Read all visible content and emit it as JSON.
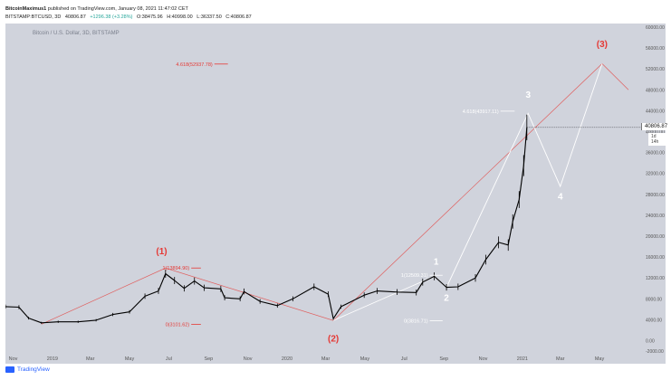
{
  "header": {
    "author": "BitcoinMaximus1",
    "published_text": "published on TradingView.com, January 08, 2021 11:47:02 CET",
    "symbol": "BITSTAMP:BTCUSD, 3D",
    "last": "40806.87",
    "change": "+1296.38 (+3.28%)",
    "open": "O:38475.96",
    "high": "H:40998.00",
    "low": "L:36337.50",
    "close": "C:40806.87"
  },
  "chart_data": {
    "type": "line",
    "title": "Bitcoin / U.S. Dollar, 3D, BITSTAMP",
    "current_price": 40806.87,
    "current_price_label": "40806.87",
    "countdown_label": "1d 14h",
    "ylim": [
      -2000,
      60000
    ],
    "y_ticks": [
      -2000,
      0,
      4000,
      8000,
      12000,
      16000,
      20000,
      24000,
      28000,
      32000,
      36000,
      40000,
      44000,
      48000,
      52000,
      56000,
      60000
    ],
    "y_tick_labels": [
      "-2000.00",
      "0.00",
      "4000.00",
      "8000.00",
      "12000.00",
      "16000.00",
      "20000.00",
      "24000.00",
      "28000.00",
      "32000.00",
      "36000.00",
      "40000.00",
      "44000.00",
      "48000.00",
      "52000.00",
      "56000.00",
      "60000.00"
    ],
    "x_range": [
      "2018-10-20",
      "2021-06-15"
    ],
    "x_ticks": [
      {
        "date": "2018-11-01",
        "label": "Nov"
      },
      {
        "date": "2019-01-01",
        "label": "2019"
      },
      {
        "date": "2019-03-01",
        "label": "Mar"
      },
      {
        "date": "2019-05-01",
        "label": "May"
      },
      {
        "date": "2019-07-01",
        "label": "Jul"
      },
      {
        "date": "2019-09-01",
        "label": "Sep"
      },
      {
        "date": "2019-11-01",
        "label": "Nov"
      },
      {
        "date": "2020-01-01",
        "label": "2020"
      },
      {
        "date": "2020-03-01",
        "label": "Mar"
      },
      {
        "date": "2020-05-01",
        "label": "May"
      },
      {
        "date": "2020-07-01",
        "label": "Jul"
      },
      {
        "date": "2020-09-01",
        "label": "Sep"
      },
      {
        "date": "2020-11-01",
        "label": "Nov"
      },
      {
        "date": "2021-01-01",
        "label": "2021"
      },
      {
        "date": "2021-03-01",
        "label": "Mar"
      },
      {
        "date": "2021-05-01",
        "label": "May"
      }
    ],
    "price_series": [
      {
        "x": "2018-10-20",
        "y": 6500
      },
      {
        "x": "2018-11-10",
        "y": 6400
      },
      {
        "x": "2018-11-25",
        "y": 4300
      },
      {
        "x": "2018-12-15",
        "y": 3400
      },
      {
        "x": "2019-01-10",
        "y": 3600
      },
      {
        "x": "2019-02-10",
        "y": 3600
      },
      {
        "x": "2019-03-10",
        "y": 3900
      },
      {
        "x": "2019-04-05",
        "y": 5000
      },
      {
        "x": "2019-05-01",
        "y": 5500
      },
      {
        "x": "2019-05-25",
        "y": 8500
      },
      {
        "x": "2019-06-15",
        "y": 9500
      },
      {
        "x": "2019-06-26",
        "y": 12800
      },
      {
        "x": "2019-07-10",
        "y": 11500
      },
      {
        "x": "2019-07-25",
        "y": 10000
      },
      {
        "x": "2019-08-10",
        "y": 11400
      },
      {
        "x": "2019-08-25",
        "y": 10100
      },
      {
        "x": "2019-09-20",
        "y": 9900
      },
      {
        "x": "2019-09-26",
        "y": 8200
      },
      {
        "x": "2019-10-20",
        "y": 8000
      },
      {
        "x": "2019-10-26",
        "y": 9400
      },
      {
        "x": "2019-11-20",
        "y": 7500
      },
      {
        "x": "2019-12-17",
        "y": 6700
      },
      {
        "x": "2020-01-10",
        "y": 8000
      },
      {
        "x": "2020-02-12",
        "y": 10300
      },
      {
        "x": "2020-03-05",
        "y": 8900
      },
      {
        "x": "2020-03-13",
        "y": 4200
      },
      {
        "x": "2020-03-25",
        "y": 6500
      },
      {
        "x": "2020-04-30",
        "y": 8700
      },
      {
        "x": "2020-05-20",
        "y": 9500
      },
      {
        "x": "2020-06-20",
        "y": 9300
      },
      {
        "x": "2020-07-20",
        "y": 9200
      },
      {
        "x": "2020-07-30",
        "y": 11200
      },
      {
        "x": "2020-08-17",
        "y": 12300
      },
      {
        "x": "2020-09-05",
        "y": 10200
      },
      {
        "x": "2020-09-23",
        "y": 10300
      },
      {
        "x": "2020-10-20",
        "y": 12000
      },
      {
        "x": "2020-11-05",
        "y": 15500
      },
      {
        "x": "2020-11-25",
        "y": 18800
      },
      {
        "x": "2020-12-10",
        "y": 18300
      },
      {
        "x": "2020-12-17",
        "y": 22800
      },
      {
        "x": "2020-12-27",
        "y": 27000
      },
      {
        "x": "2021-01-03",
        "y": 33500
      },
      {
        "x": "2021-01-08",
        "y": 40806
      }
    ],
    "red_wave_path": [
      {
        "x": "2018-12-15",
        "y": 3150
      },
      {
        "x": "2019-06-26",
        "y": 13880
      },
      {
        "x": "2020-03-13",
        "y": 3850
      },
      {
        "x": "2021-05-05",
        "y": 53000
      },
      {
        "x": "2021-06-15",
        "y": 48000
      }
    ],
    "white_wave_path": [
      {
        "x": "2020-03-13",
        "y": 3850
      },
      {
        "x": "2020-08-17",
        "y": 12300
      },
      {
        "x": "2020-09-05",
        "y": 10200
      },
      {
        "x": "2021-01-10",
        "y": 43500
      },
      {
        "x": "2021-03-01",
        "y": 29500
      },
      {
        "x": "2021-05-05",
        "y": 53000
      }
    ],
    "fib_levels": [
      {
        "label": "4.618(52937.78)",
        "y": 52937.78,
        "x_from": "2019-09-10",
        "x_to": "2019-10-01",
        "color": "#e53935"
      },
      {
        "label": "1(13894.90)",
        "y": 13894.9,
        "x_from": "2019-08-05",
        "x_to": "2019-08-20",
        "color": "#e53935"
      },
      {
        "label": "0(3101.62)",
        "y": 3101.62,
        "x_from": "2019-08-05",
        "x_to": "2019-08-20",
        "color": "#e53935"
      },
      {
        "label": "4.618(43917.11)",
        "y": 43917.11,
        "x_from": "2020-11-28",
        "x_to": "2020-12-20",
        "color": "#ffffff"
      },
      {
        "label": "1(12509.31)",
        "y": 12509.31,
        "x_from": "2020-08-10",
        "x_to": "2020-08-30",
        "color": "#ffffff"
      },
      {
        "label": "0(3816.71)",
        "y": 3816.71,
        "x_from": "2020-08-10",
        "x_to": "2020-08-30",
        "color": "#ffffff"
      }
    ],
    "wave_labels": [
      {
        "text": "(1)",
        "x": "2019-06-20",
        "y": 16500,
        "color": "#e53935"
      },
      {
        "text": "(2)",
        "x": "2020-03-13",
        "y": -200,
        "color": "#e53935"
      },
      {
        "text": "(3)",
        "x": "2021-05-05",
        "y": 56200,
        "color": "#e53935"
      },
      {
        "text": "1",
        "x": "2020-08-20",
        "y": 14500,
        "color": "#ffffff"
      },
      {
        "text": "2",
        "x": "2020-09-05",
        "y": 7600,
        "color": "#ffffff"
      },
      {
        "text": "3",
        "x": "2021-01-10",
        "y": 46500,
        "color": "#ffffff"
      },
      {
        "text": "4",
        "x": "2021-03-01",
        "y": 27000,
        "color": "#ffffff"
      }
    ]
  },
  "footer": {
    "brand": "TradingView"
  },
  "colors": {
    "background": "#d0d3dc",
    "price_line": "#000000",
    "red_wave": "#e53935",
    "white_wave": "#ffffff",
    "axis_text": "#555555"
  }
}
